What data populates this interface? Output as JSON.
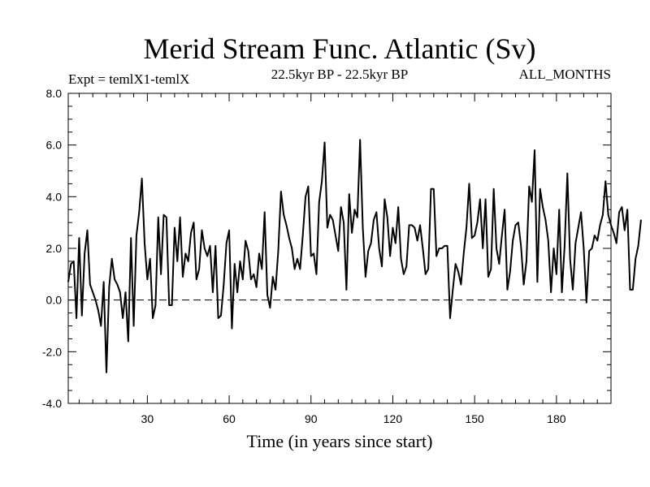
{
  "chart_data": {
    "type": "line",
    "title": "Merid Stream Func. Atlantic (Sv)",
    "subtitle_left": "Expt = temlX1-temlX",
    "subtitle_center": "22.5kyr BP - 22.5kyr BP",
    "subtitle_right": "ALL_MONTHS",
    "xlabel": "Time (in years since start)",
    "ylabel": "",
    "xlim": [
      1,
      200
    ],
    "ylim": [
      -4.0,
      8.0
    ],
    "x_ticks": [
      30,
      60,
      90,
      120,
      150,
      180
    ],
    "x_tick_labels": [
      "30",
      "60",
      "90",
      "120",
      "150",
      "180"
    ],
    "y_ticks": [
      -4.0,
      -2.0,
      0.0,
      2.0,
      4.0,
      6.0,
      8.0
    ],
    "y_tick_labels": [
      "-4.0",
      "-2.0",
      "0.0",
      "2.0",
      "4.0",
      "6.0",
      "8.0"
    ],
    "reference_line": {
      "y": 0.0,
      "style": "dashed"
    },
    "series": [
      {
        "name": "Merid Stream Func. Atlantic",
        "color": "#000000",
        "x_start": 1,
        "x_step": 1,
        "values": [
          0.7,
          1.4,
          1.5,
          -0.7,
          2.4,
          -0.6,
          1.8,
          2.7,
          0.6,
          0.3,
          0.0,
          -0.4,
          -1.0,
          0.7,
          -2.8,
          0.5,
          1.6,
          0.8,
          0.6,
          0.3,
          -0.7,
          0.3,
          -1.6,
          2.4,
          -1.0,
          2.5,
          3.4,
          4.7,
          2.2,
          0.8,
          1.6,
          -0.7,
          -0.2,
          3.2,
          1.0,
          3.3,
          3.2,
          -0.2,
          -0.2,
          2.8,
          1.5,
          3.2,
          0.9,
          1.8,
          1.5,
          2.6,
          3.0,
          0.8,
          1.2,
          2.7,
          2.0,
          1.7,
          2.1,
          0.3,
          2.1,
          -0.7,
          -0.6,
          0.6,
          2.2,
          2.7,
          -1.1,
          1.4,
          0.3,
          1.5,
          0.8,
          2.3,
          1.9,
          0.8,
          1.0,
          0.5,
          1.8,
          1.2,
          3.4,
          0.2,
          -0.3,
          0.9,
          0.4,
          1.9,
          4.2,
          3.3,
          2.9,
          2.4,
          2.0,
          1.2,
          1.6,
          1.2,
          2.5,
          4.0,
          4.4,
          1.7,
          1.8,
          1.0,
          3.8,
          4.6,
          6.1,
          2.8,
          3.3,
          3.1,
          2.5,
          1.9,
          3.6,
          3.0,
          0.4,
          4.1,
          2.6,
          3.5,
          3.2,
          6.2,
          2.8,
          0.9,
          1.9,
          2.2,
          3.1,
          3.4,
          2.0,
          1.3,
          3.9,
          3.2,
          1.7,
          2.8,
          2.2,
          3.6,
          1.6,
          1.0,
          1.3,
          2.9,
          2.9,
          2.8,
          2.3,
          2.9,
          2.0,
          1.0,
          1.2,
          4.3,
          4.3,
          1.7,
          2.0,
          2.0,
          2.1,
          2.1,
          -0.7,
          0.4,
          1.4,
          1.1,
          0.6,
          1.8,
          2.8,
          4.5,
          2.4,
          2.5,
          3.0,
          3.9,
          2.0,
          3.9,
          0.9,
          1.2,
          4.3,
          2.0,
          1.4,
          2.5,
          3.5,
          0.4,
          1.1,
          2.3,
          2.9,
          3.0,
          2.1,
          0.6,
          1.5,
          4.4,
          3.8,
          5.8,
          0.7,
          4.3,
          3.6,
          3.1,
          2.3,
          0.3,
          2.0,
          1.0,
          3.5,
          0.3,
          2.1,
          4.9,
          1.6,
          0.4,
          2.2,
          2.8,
          3.4,
          2.0,
          -0.1,
          1.9,
          2.0,
          2.5,
          2.3,
          2.9,
          3.3,
          4.6,
          3.3,
          2.9,
          2.6,
          2.2,
          3.4,
          3.6,
          2.7,
          3.5,
          0.4,
          0.4,
          1.6,
          2.1,
          3.1
        ]
      }
    ]
  }
}
